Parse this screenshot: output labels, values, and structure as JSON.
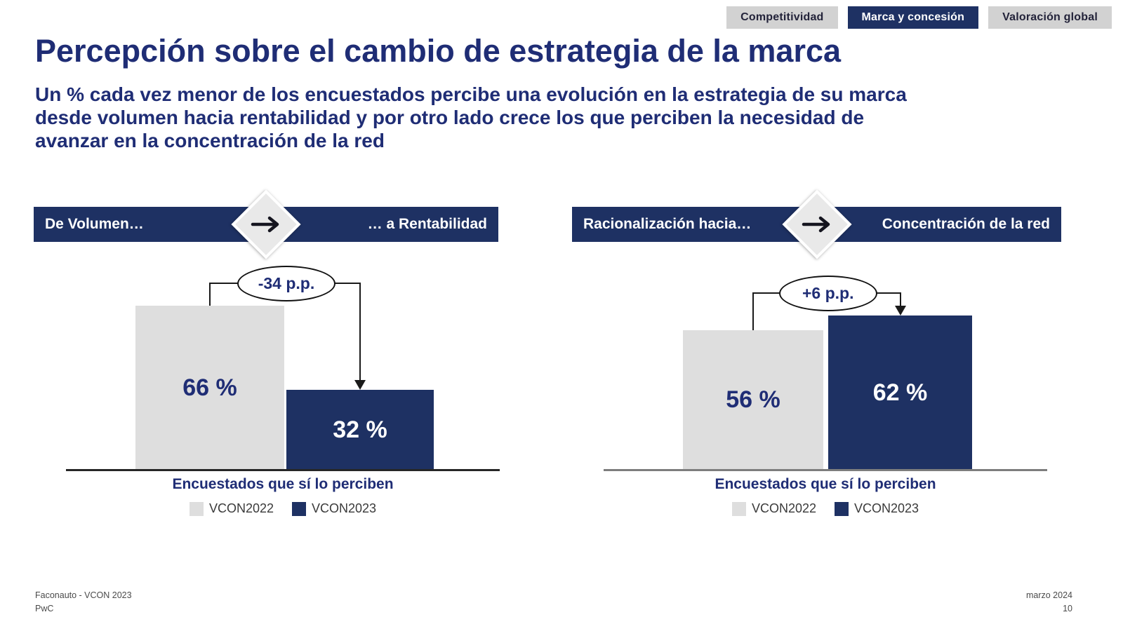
{
  "tabs": [
    {
      "label": "Competitividad",
      "active": false
    },
    {
      "label": "Marca y concesión",
      "active": true
    },
    {
      "label": "Valoración global",
      "active": false
    }
  ],
  "title": "Percepción sobre el cambio de estrategia de la marca",
  "subtitle_lines": [
    "Un % cada vez menor de los encuestados percibe una evolución en la estrategia de su marca",
    "desde volumen hacia rentabilidad y por otro lado crece los que perciben la necesidad de",
    "avanzar en la concentración de la red"
  ],
  "colors": {
    "navy": "#1e3163",
    "heading_blue": "#1f2d75",
    "bar_gray": "#dedede",
    "tab_gray": "#d2d2d2"
  },
  "icons": {
    "banner_arrow": "arrow-right",
    "delta_arrow": "arrow-down"
  },
  "chart_data": [
    {
      "type": "bar",
      "banner_left": "De Volumen…",
      "banner_right": "… a Rentabilidad",
      "categories": [
        "VCON2022",
        "VCON2023"
      ],
      "values": [
        66,
        32
      ],
      "value_labels": [
        "66 %",
        "32 %"
      ],
      "delta_label": "-34 p.p.",
      "xlabel": "Encuestados que sí lo perciben",
      "legend": [
        "VCON2022",
        "VCON2023"
      ],
      "ylim": [
        0,
        100
      ],
      "axis_color": "#262626",
      "grid": false,
      "legend_position": "bottom"
    },
    {
      "type": "bar",
      "banner_left": "Racionalización hacia…",
      "banner_right": "Concentración de la red",
      "categories": [
        "VCON2022",
        "VCON2023"
      ],
      "values": [
        56,
        62
      ],
      "value_labels": [
        "56 %",
        "62 %"
      ],
      "delta_label": "+6 p.p.",
      "xlabel": "Encuestados que sí lo perciben",
      "legend": [
        "VCON2022",
        "VCON2023"
      ],
      "ylim": [
        0,
        100
      ],
      "axis_color": "#7d7d7d",
      "grid": false,
      "legend_position": "bottom"
    }
  ],
  "footer": {
    "source": "Faconauto - VCON 2023",
    "brand": "PwC",
    "date": "marzo 2024",
    "page": "10"
  }
}
